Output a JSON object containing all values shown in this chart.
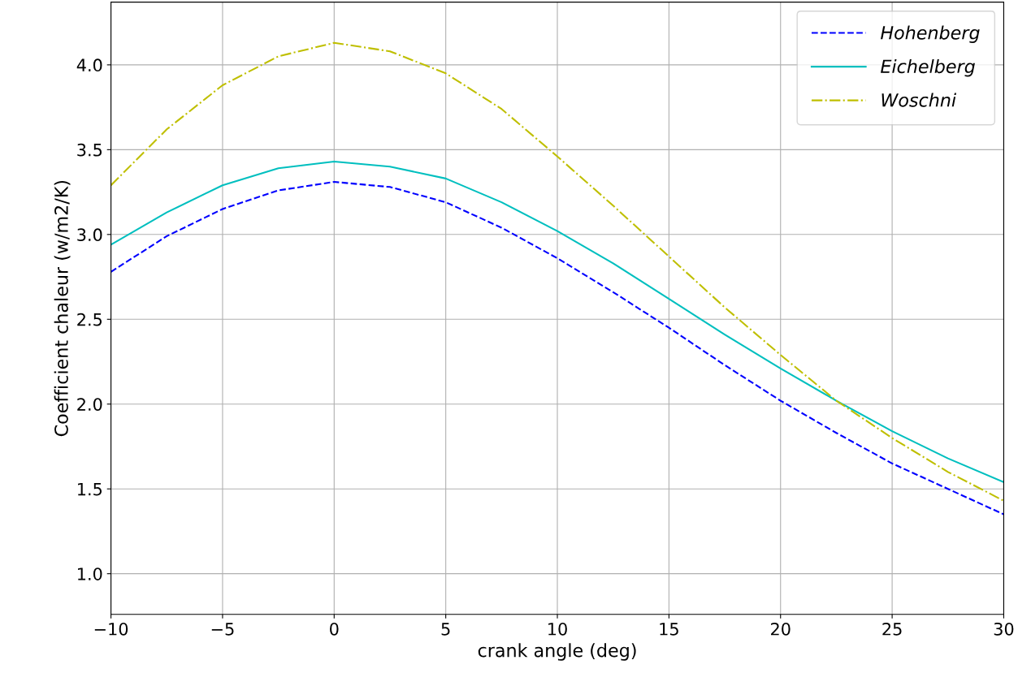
{
  "chart_data": {
    "type": "line",
    "xlabel": "crank angle (deg)",
    "ylabel": "Coefficient chaleur (w/m2/K)",
    "x": [
      -10,
      -7.5,
      -5,
      -2.5,
      0,
      2.5,
      5,
      7.5,
      10,
      12.5,
      15,
      17.5,
      20,
      22.5,
      25,
      27.5,
      30
    ],
    "series": [
      {
        "name": "Hohenberg",
        "color": "#0000ff",
        "line_style": "dashed",
        "values": [
          2.78,
          2.99,
          3.15,
          3.26,
          3.31,
          3.28,
          3.19,
          3.04,
          2.86,
          2.66,
          2.45,
          2.23,
          2.02,
          1.83,
          1.65,
          1.5,
          1.35
        ]
      },
      {
        "name": "Eichelberg",
        "color": "#00bfbf",
        "line_style": "solid",
        "values": [
          2.94,
          3.13,
          3.29,
          3.39,
          3.43,
          3.4,
          3.33,
          3.19,
          3.02,
          2.83,
          2.62,
          2.41,
          2.21,
          2.02,
          1.84,
          1.68,
          1.54
        ]
      },
      {
        "name": "Woschni",
        "color": "#bfbf00",
        "line_style": "dashdot",
        "values": [
          3.29,
          3.62,
          3.88,
          4.05,
          4.13,
          4.08,
          3.95,
          3.74,
          3.46,
          3.17,
          2.87,
          2.57,
          2.29,
          2.02,
          1.8,
          1.6,
          1.43
        ]
      }
    ],
    "xlim": [
      -10,
      30
    ],
    "xticks": [
      -10,
      -5,
      0,
      5,
      10,
      15,
      20,
      25,
      30
    ],
    "ylim": [
      0.76,
      4.37
    ],
    "yticks": [
      {
        "value": 1,
        "label": "1.0"
      },
      1.5,
      {
        "value": 2,
        "label": "2.0"
      },
      2.5,
      {
        "value": 3,
        "label": "3.0"
      },
      3.5,
      {
        "value": 4,
        "label": "4.0"
      }
    ],
    "grid": true,
    "legend": "top right",
    "marker": "none"
  }
}
